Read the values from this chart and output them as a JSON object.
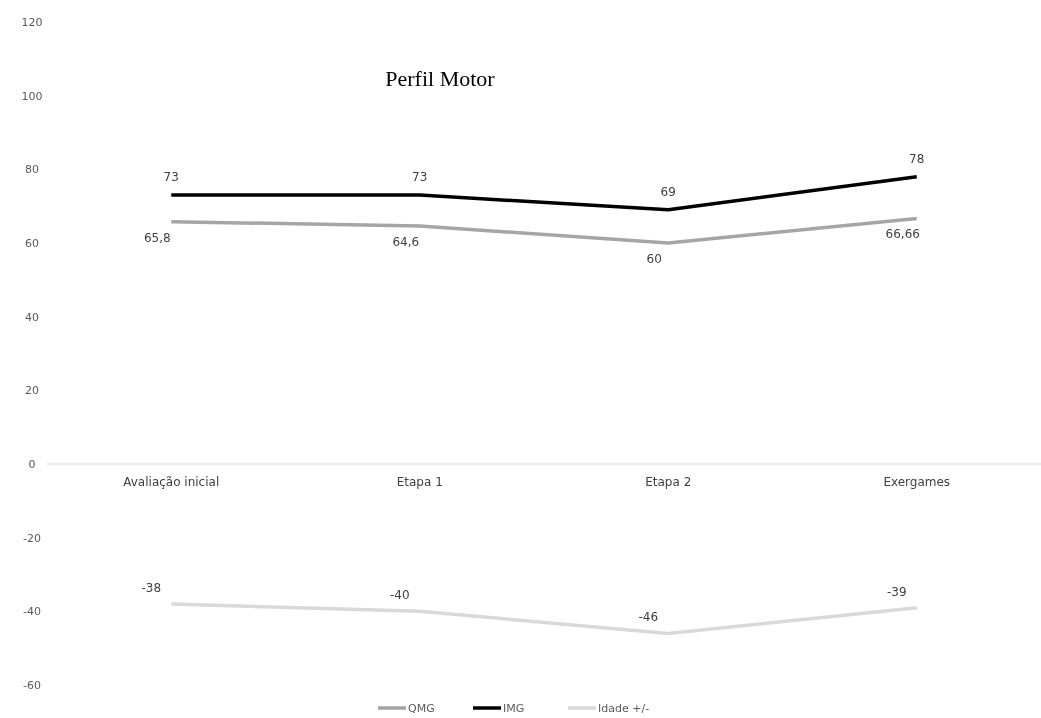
{
  "chart_data": {
    "type": "line",
    "title": "Perfil Motor",
    "categories": [
      "Avaliação inicial",
      "Etapa 1",
      "Etapa 2",
      "Exergames"
    ],
    "series": [
      {
        "name": "QMG",
        "color": "#a5a5a5",
        "values": [
          65.8,
          64.6,
          60,
          66.66
        ],
        "value_labels": [
          "65,8",
          "64,6",
          "60",
          "66,66"
        ]
      },
      {
        "name": "IMG",
        "color": "#000000",
        "values": [
          73,
          73,
          69,
          78
        ],
        "value_labels": [
          "73",
          "73",
          "69",
          "78"
        ]
      },
      {
        "name": "Idade +/-",
        "color": "#d9d9d9",
        "values": [
          -38,
          -40,
          -46,
          -39
        ],
        "value_labels": [
          "-38",
          "-40",
          "-46",
          "-39"
        ]
      }
    ],
    "ylim": [
      -60,
      120
    ],
    "yticks": [
      -60,
      -40,
      -20,
      0,
      20,
      40,
      60,
      80,
      100,
      120
    ],
    "grid": false,
    "legend": "bottom",
    "marker": "none",
    "line_style": "solid"
  }
}
